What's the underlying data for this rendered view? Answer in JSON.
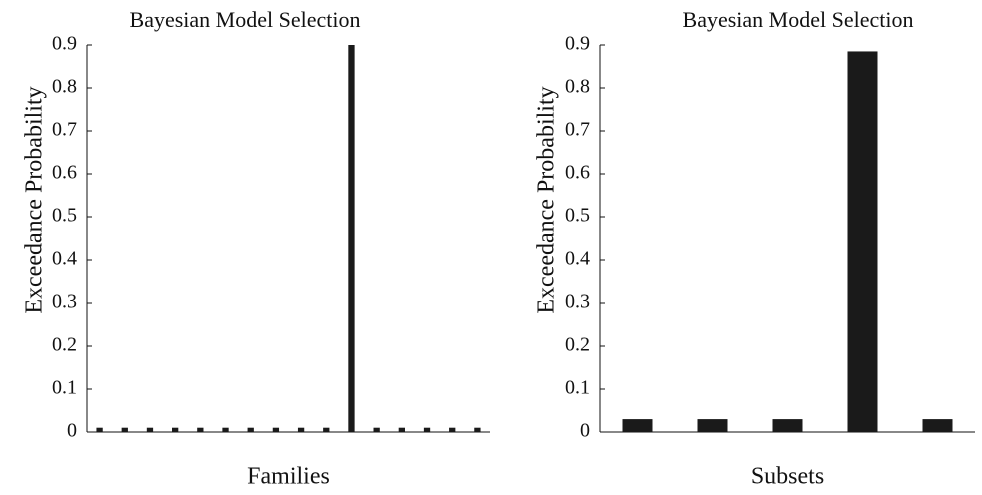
{
  "chart_data": [
    {
      "type": "bar",
      "title": "Bayesian Model Selection",
      "ylabel": "Exceedance Probability",
      "xlabel": "Families",
      "categories": [
        null,
        null,
        null,
        null,
        null,
        null,
        null,
        null,
        null,
        null,
        null,
        null,
        null,
        null,
        null,
        null
      ],
      "values": [
        0.01,
        0.01,
        0.01,
        0.01,
        0.01,
        0.01,
        0.01,
        0.01,
        0.01,
        0.01,
        0.9,
        0.01,
        0.01,
        0.01,
        0.01,
        0.01
      ],
      "color": "#1a1a1a",
      "ylim": [
        0,
        0.9
      ],
      "yticks": [
        0,
        0.1,
        0.2,
        0.3,
        0.4,
        0.5,
        0.6,
        0.7,
        0.8,
        0.9
      ]
    },
    {
      "type": "bar",
      "title": "Bayesian Model Selection",
      "ylabel": "Exceedance Probability",
      "xlabel": "Subsets",
      "categories": [
        null,
        null,
        null,
        null,
        null
      ],
      "values": [
        0.03,
        0.03,
        0.03,
        0.885,
        0.03
      ],
      "color": "#1a1a1a",
      "ylim": [
        0,
        0.9
      ],
      "yticks": [
        0,
        0.1,
        0.2,
        0.3,
        0.4,
        0.5,
        0.6,
        0.7,
        0.8,
        0.9
      ]
    }
  ]
}
